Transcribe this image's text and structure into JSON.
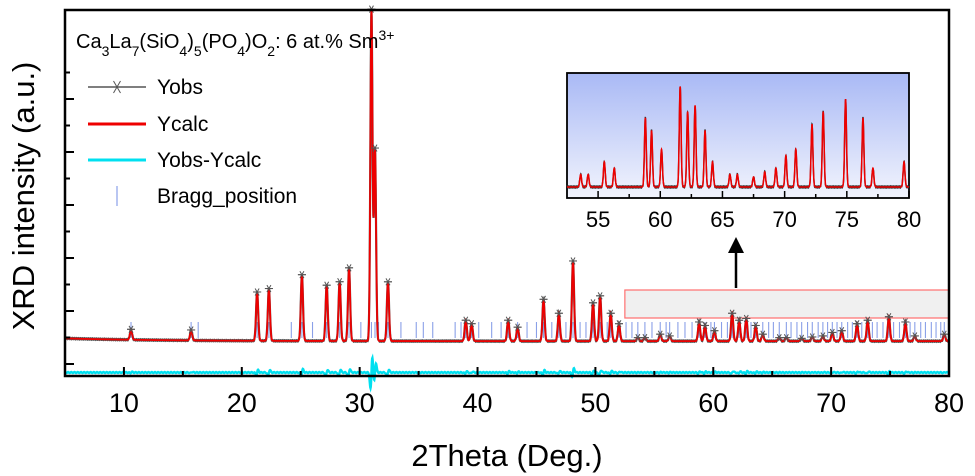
{
  "chart_data": {
    "type": "line",
    "title": "",
    "xlabel": "2Theta (Deg.)",
    "ylabel": "XRD intensity (a.u.)",
    "xlim": [
      5,
      80
    ],
    "ylim": [
      -0.05,
      1.0
    ],
    "x_ticks": [
      10,
      20,
      30,
      40,
      50,
      60,
      70,
      80
    ],
    "y_ticks_labeled": false,
    "grid": false,
    "legend_position": "top-left",
    "annotation": {
      "base": "Ca",
      "parts": [
        {
          "t": "Ca",
          "s": "n"
        },
        {
          "t": "3",
          "s": "sub"
        },
        {
          "t": "La",
          "s": "n"
        },
        {
          "t": "7",
          "s": "sub"
        },
        {
          "t": "(SiO",
          "s": "n"
        },
        {
          "t": "4",
          "s": "sub"
        },
        {
          "t": ")",
          "s": "n"
        },
        {
          "t": "5",
          "s": "sub"
        },
        {
          "t": "(PO",
          "s": "n"
        },
        {
          "t": "4",
          "s": "sub"
        },
        {
          "t": ")O",
          "s": "n"
        },
        {
          "t": "2",
          "s": "sub"
        },
        {
          "t": ": 6 at.% Sm",
          "s": "n"
        },
        {
          "t": "3+",
          "s": "sup"
        }
      ]
    },
    "series": [
      {
        "name": "Yobs",
        "color": "#555555",
        "marker": "asterisk",
        "baseline": 0.05
      },
      {
        "name": "Ycalc",
        "color": "#ee0000",
        "baseline": 0.05
      },
      {
        "name": "Yobs-Ycalc",
        "color": "#00e0f0",
        "baseline": -0.04
      },
      {
        "name": "Bragg_position",
        "color": "#8aa0e8",
        "marker": "tick"
      }
    ],
    "peaks": [
      {
        "x": 10.6,
        "y": 0.03
      },
      {
        "x": 15.7,
        "y": 0.03
      },
      {
        "x": 21.3,
        "y": 0.14
      },
      {
        "x": 22.3,
        "y": 0.15
      },
      {
        "x": 25.1,
        "y": 0.19
      },
      {
        "x": 27.2,
        "y": 0.16
      },
      {
        "x": 28.3,
        "y": 0.17
      },
      {
        "x": 29.1,
        "y": 0.21
      },
      {
        "x": 31.0,
        "y": 0.95
      },
      {
        "x": 31.3,
        "y": 0.55
      },
      {
        "x": 32.4,
        "y": 0.17
      },
      {
        "x": 39.0,
        "y": 0.06
      },
      {
        "x": 39.5,
        "y": 0.05
      },
      {
        "x": 42.6,
        "y": 0.06
      },
      {
        "x": 43.4,
        "y": 0.04
      },
      {
        "x": 45.6,
        "y": 0.12
      },
      {
        "x": 46.9,
        "y": 0.08
      },
      {
        "x": 48.1,
        "y": 0.23
      },
      {
        "x": 49.8,
        "y": 0.11
      },
      {
        "x": 50.4,
        "y": 0.13
      },
      {
        "x": 51.3,
        "y": 0.08
      },
      {
        "x": 52.0,
        "y": 0.05
      },
      {
        "x": 53.6,
        "y": 0.01
      },
      {
        "x": 54.2,
        "y": 0.01
      },
      {
        "x": 55.5,
        "y": 0.02
      },
      {
        "x": 56.3,
        "y": 0.015
      },
      {
        "x": 58.8,
        "y": 0.055
      },
      {
        "x": 59.3,
        "y": 0.045
      },
      {
        "x": 60.1,
        "y": 0.03
      },
      {
        "x": 61.6,
        "y": 0.08
      },
      {
        "x": 62.2,
        "y": 0.06
      },
      {
        "x": 62.8,
        "y": 0.065
      },
      {
        "x": 63.6,
        "y": 0.045
      },
      {
        "x": 64.2,
        "y": 0.02
      },
      {
        "x": 65.6,
        "y": 0.01
      },
      {
        "x": 66.2,
        "y": 0.01
      },
      {
        "x": 67.5,
        "y": 0.008
      },
      {
        "x": 68.4,
        "y": 0.012
      },
      {
        "x": 69.3,
        "y": 0.015
      },
      {
        "x": 70.1,
        "y": 0.025
      },
      {
        "x": 70.9,
        "y": 0.03
      },
      {
        "x": 72.2,
        "y": 0.05
      },
      {
        "x": 73.1,
        "y": 0.06
      },
      {
        "x": 74.9,
        "y": 0.07
      },
      {
        "x": 76.3,
        "y": 0.055
      },
      {
        "x": 77.1,
        "y": 0.015
      },
      {
        "x": 79.6,
        "y": 0.02
      }
    ],
    "bragg_positions": [
      10.6,
      15.7,
      16.3,
      21.3,
      22.3,
      24.2,
      25.1,
      26.0,
      27.2,
      28.3,
      29.1,
      30.1,
      31.0,
      31.3,
      31.6,
      32.4,
      33.5,
      34.8,
      35.4,
      36.2,
      38.1,
      38.6,
      39.0,
      39.5,
      40.1,
      41.2,
      42.0,
      42.6,
      43.4,
      44.2,
      45.0,
      45.6,
      46.3,
      46.9,
      47.5,
      48.1,
      48.7,
      49.2,
      49.8,
      50.4,
      51.0,
      51.3,
      52.0,
      52.6,
      53.1,
      53.6,
      54.2,
      54.8,
      55.5,
      56.0,
      56.3,
      57.0,
      57.6,
      58.2,
      58.8,
      59.3,
      59.8,
      60.1,
      60.7,
      61.2,
      61.6,
      62.2,
      62.8,
      63.2,
      63.6,
      64.2,
      64.7,
      65.1,
      65.6,
      66.2,
      66.6,
      67.1,
      67.5,
      68.0,
      68.4,
      68.9,
      69.3,
      69.7,
      70.1,
      70.5,
      70.9,
      71.4,
      71.8,
      72.2,
      72.6,
      73.1,
      73.5,
      73.9,
      74.4,
      74.9,
      75.3,
      75.8,
      76.3,
      76.7,
      77.1,
      77.6,
      78.0,
      78.5,
      78.9,
      79.3,
      79.6
    ],
    "inset": {
      "xlim": [
        52.5,
        80
      ],
      "x_ticks": [
        55,
        60,
        65,
        70,
        75,
        80
      ],
      "highlight_range": [
        52.5,
        80
      ],
      "ylim": [
        0,
        0.09
      ]
    }
  }
}
